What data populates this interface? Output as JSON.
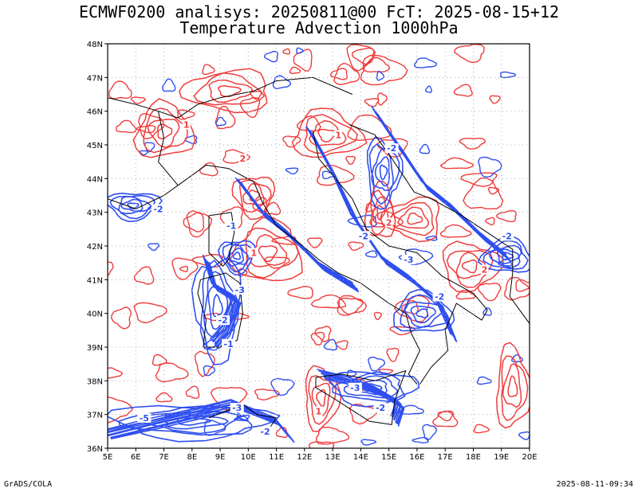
{
  "header": {
    "title_line1": "ECMWF0200 analisys: 20250811@00 FcT: 2025-08-15+12",
    "title_line2": "Temperature Advection 1000hPa"
  },
  "footer": {
    "left": "GrADS/COLA",
    "right": "2025-08-11-09:34"
  },
  "map": {
    "lon_range": [
      5,
      20
    ],
    "lat_range": [
      36,
      48
    ],
    "lon_ticks": [
      "5E",
      "6E",
      "7E",
      "8E",
      "9E",
      "10E",
      "11E",
      "12E",
      "13E",
      "14E",
      "15E",
      "16E",
      "17E",
      "18E",
      "19E",
      "20E"
    ],
    "lat_ticks": [
      "36N",
      "37N",
      "38N",
      "39N",
      "40N",
      "41N",
      "42N",
      "43N",
      "44N",
      "45N",
      "46N",
      "47N",
      "48N"
    ],
    "colors": {
      "warm": "#ef3c3c",
      "cold": "#2f4ff0",
      "frame": "#000000",
      "grid": "#aaaaaa"
    },
    "warm_regions": [
      {
        "lon": 7.0,
        "lat": 45.4,
        "rx": 1.0,
        "ry": 0.8
      },
      {
        "lon": 10.2,
        "lat": 43.5,
        "rx": 0.7,
        "ry": 0.6
      },
      {
        "lon": 12.8,
        "lat": 45.3,
        "rx": 1.2,
        "ry": 0.7
      },
      {
        "lon": 14.7,
        "lat": 43.0,
        "rx": 0.5,
        "ry": 0.8
      },
      {
        "lon": 15.9,
        "lat": 42.8,
        "rx": 1.0,
        "ry": 0.6
      },
      {
        "lon": 17.9,
        "lat": 41.4,
        "rx": 1.0,
        "ry": 0.7
      },
      {
        "lon": 10.7,
        "lat": 41.8,
        "rx": 1.2,
        "ry": 0.9
      },
      {
        "lon": 12.6,
        "lat": 37.5,
        "rx": 0.6,
        "ry": 0.9
      },
      {
        "lon": 19.4,
        "lat": 37.8,
        "rx": 0.6,
        "ry": 1.2
      },
      {
        "lon": 9.3,
        "lat": 46.6,
        "rx": 1.5,
        "ry": 0.6
      }
    ],
    "cold_regions": [
      {
        "lon": 8.9,
        "lat": 40.2,
        "rx": 0.8,
        "ry": 1.5
      },
      {
        "lon": 5.9,
        "lat": 43.2,
        "rx": 0.9,
        "ry": 0.4
      },
      {
        "lon": 9.6,
        "lat": 41.7,
        "rx": 0.6,
        "ry": 0.5
      },
      {
        "lon": 14.4,
        "lat": 37.8,
        "rx": 1.5,
        "ry": 0.5
      },
      {
        "lon": 8.0,
        "lat": 36.8,
        "rx": 2.8,
        "ry": 0.5
      },
      {
        "lon": 16.2,
        "lat": 40.0,
        "rx": 1.0,
        "ry": 0.6
      },
      {
        "lon": 19.2,
        "lat": 41.7,
        "rx": 0.9,
        "ry": 0.5
      },
      {
        "lon": 14.8,
        "lat": 44.2,
        "rx": 0.6,
        "ry": 1.0
      }
    ],
    "cold_bands": [
      [
        [
          12.2,
          45.4
        ],
        [
          13.0,
          44.2
        ],
        [
          13.8,
          42.8
        ],
        [
          14.8,
          41.6
        ],
        [
          15.8,
          41.0
        ],
        [
          16.8,
          40.3
        ],
        [
          17.3,
          39.3
        ]
      ],
      [
        [
          14.5,
          46.0
        ],
        [
          15.4,
          44.9
        ],
        [
          16.3,
          43.8
        ],
        [
          17.3,
          43.1
        ],
        [
          18.3,
          42.3
        ],
        [
          19.2,
          41.7
        ]
      ],
      [
        [
          9.7,
          43.9
        ],
        [
          10.5,
          43.0
        ],
        [
          11.5,
          42.3
        ],
        [
          12.6,
          41.4
        ],
        [
          13.8,
          40.8
        ]
      ],
      [
        [
          8.5,
          41.6
        ],
        [
          8.8,
          40.8
        ],
        [
          9.6,
          40.4
        ],
        [
          9.2,
          39.5
        ],
        [
          8.8,
          39.1
        ]
      ],
      [
        [
          5.0,
          36.4
        ],
        [
          6.5,
          36.7
        ],
        [
          8.0,
          37.0
        ],
        [
          9.5,
          37.3
        ],
        [
          11.0,
          36.8
        ],
        [
          11.5,
          36.3
        ]
      ],
      [
        [
          12.6,
          38.2
        ],
        [
          13.6,
          38.0
        ],
        [
          14.6,
          37.7
        ],
        [
          15.4,
          37.3
        ],
        [
          15.2,
          36.8
        ]
      ]
    ],
    "cold_labels": [
      {
        "text": "-2",
        "lon": 6.8,
        "lat": 43.1
      },
      {
        "text": "-1",
        "lon": 9.4,
        "lat": 42.6
      },
      {
        "text": "-3",
        "lon": 9.7,
        "lat": 40.7
      },
      {
        "text": "-2",
        "lon": 9.1,
        "lat": 39.8
      },
      {
        "text": "-1",
        "lon": 9.3,
        "lat": 39.1
      },
      {
        "text": "-2",
        "lon": 15.1,
        "lat": 44.9
      },
      {
        "text": "-2",
        "lon": 14.1,
        "lat": 42.3
      },
      {
        "text": "-3",
        "lon": 15.7,
        "lat": 41.6
      },
      {
        "text": "-2",
        "lon": 16.8,
        "lat": 40.5
      },
      {
        "text": "-2",
        "lon": 19.2,
        "lat": 42.3
      },
      {
        "text": "-3",
        "lon": 13.8,
        "lat": 37.8
      },
      {
        "text": "-2",
        "lon": 14.7,
        "lat": 37.2
      },
      {
        "text": "-5",
        "lon": 6.3,
        "lat": 36.9
      },
      {
        "text": "-3",
        "lon": 9.6,
        "lat": 37.2
      },
      {
        "text": "-2",
        "lon": 10.6,
        "lat": 36.5
      }
    ],
    "warm_labels": [
      {
        "text": "1",
        "lon": 7.8,
        "lat": 45.6
      },
      {
        "text": "2",
        "lon": 9.8,
        "lat": 44.6
      },
      {
        "text": "1",
        "lon": 13.2,
        "lat": 45.3
      },
      {
        "text": "2",
        "lon": 15.0,
        "lat": 42.7
      },
      {
        "text": "1",
        "lon": 10.2,
        "lat": 41.8
      },
      {
        "text": "2",
        "lon": 18.4,
        "lat": 41.3
      },
      {
        "text": "1",
        "lon": 12.5,
        "lat": 37.1
      }
    ]
  }
}
